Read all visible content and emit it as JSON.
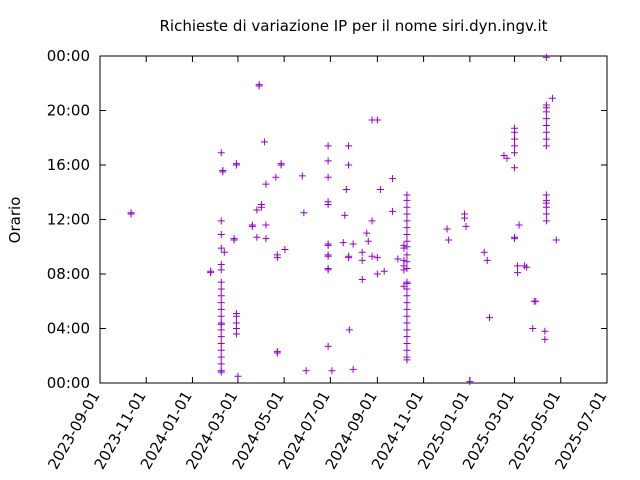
{
  "chart_data": {
    "type": "scatter",
    "title": "Richieste di variazione IP per il nome siri.dyn.ingv.it",
    "xlabel": "",
    "ylabel": "Orario",
    "x_ticks": [
      "2023-09-01",
      "2023-11-01",
      "2024-01-01",
      "2024-03-01",
      "2024-05-01",
      "2024-07-01",
      "2024-09-01",
      "2024-11-01",
      "2025-01-01",
      "2025-03-01",
      "2025-05-01",
      "2025-07-01"
    ],
    "y_ticks": [
      "00:00",
      "04:00",
      "08:00",
      "12:00",
      "16:00",
      "20:00",
      "00:00"
    ],
    "xlim": [
      "2023-09-01",
      "2025-07-01"
    ],
    "ylim": [
      0,
      24
    ],
    "grid": false,
    "marker": "+",
    "color": "#9400D3",
    "series": [
      {
        "points": [
          [
            "2023-10-12",
            12.4
          ],
          [
            "2023-10-12",
            12.5
          ],
          [
            "2024-01-25",
            8.1
          ],
          [
            "2024-01-25",
            8.2
          ],
          [
            "2024-02-08",
            16.9
          ],
          [
            "2024-02-08",
            11.9
          ],
          [
            "2024-02-08",
            10.9
          ],
          [
            "2024-02-08",
            9.9
          ],
          [
            "2024-02-08",
            8.7
          ],
          [
            "2024-02-08",
            8.3
          ],
          [
            "2024-02-08",
            7.4
          ],
          [
            "2024-02-08",
            6.9
          ],
          [
            "2024-02-08",
            6.4
          ],
          [
            "2024-02-08",
            5.9
          ],
          [
            "2024-02-08",
            5.4
          ],
          [
            "2024-02-08",
            4.9
          ],
          [
            "2024-02-08",
            4.4
          ],
          [
            "2024-02-08",
            4.3
          ],
          [
            "2024-02-08",
            3.9
          ],
          [
            "2024-02-08",
            3.4
          ],
          [
            "2024-02-08",
            2.9
          ],
          [
            "2024-02-08",
            2.4
          ],
          [
            "2024-02-08",
            1.9
          ],
          [
            "2024-02-08",
            1.4
          ],
          [
            "2024-02-08",
            0.9
          ],
          [
            "2024-02-08",
            0.8
          ],
          [
            "2024-02-10",
            15.6
          ],
          [
            "2024-02-10",
            15.5
          ],
          [
            "2024-02-12",
            9.6
          ],
          [
            "2024-02-25",
            10.5
          ],
          [
            "2024-02-25",
            10.6
          ],
          [
            "2024-02-28",
            16.1
          ],
          [
            "2024-02-28",
            16.0
          ],
          [
            "2024-02-28",
            5.1
          ],
          [
            "2024-02-28",
            4.9
          ],
          [
            "2024-02-28",
            4.4
          ],
          [
            "2024-02-28",
            4.0
          ],
          [
            "2024-02-28",
            3.6
          ],
          [
            "2024-03-01",
            0.5
          ],
          [
            "2024-03-20",
            11.6
          ],
          [
            "2024-03-20",
            11.5
          ],
          [
            "2024-03-26",
            12.7
          ],
          [
            "2024-03-26",
            10.7
          ],
          [
            "2024-03-29",
            21.9
          ],
          [
            "2024-03-29",
            21.8
          ],
          [
            "2024-04-01",
            13.1
          ],
          [
            "2024-04-01",
            12.9
          ],
          [
            "2024-04-05",
            17.7
          ],
          [
            "2024-04-07",
            14.6
          ],
          [
            "2024-04-07",
            10.6
          ],
          [
            "2024-04-07",
            11.6
          ],
          [
            "2024-04-20",
            15.1
          ],
          [
            "2024-04-22",
            9.4
          ],
          [
            "2024-04-22",
            9.2
          ],
          [
            "2024-04-22",
            2.3
          ],
          [
            "2024-04-22",
            2.2
          ],
          [
            "2024-04-27",
            16.1
          ],
          [
            "2024-04-27",
            16.0
          ],
          [
            "2024-05-02",
            9.8
          ],
          [
            "2024-05-25",
            15.2
          ],
          [
            "2024-05-27",
            12.5
          ],
          [
            "2024-05-30",
            0.9
          ],
          [
            "2024-06-28",
            17.4
          ],
          [
            "2024-06-28",
            16.3
          ],
          [
            "2024-06-28",
            15.1
          ],
          [
            "2024-06-28",
            13.1
          ],
          [
            "2024-06-28",
            13.3
          ],
          [
            "2024-06-28",
            10.1
          ],
          [
            "2024-06-28",
            10.2
          ],
          [
            "2024-06-28",
            9.4
          ],
          [
            "2024-06-28",
            9.3
          ],
          [
            "2024-06-28",
            8.4
          ],
          [
            "2024-06-28",
            8.3
          ],
          [
            "2024-06-28",
            2.7
          ],
          [
            "2024-07-03",
            0.9
          ],
          [
            "2024-07-18",
            10.3
          ],
          [
            "2024-07-20",
            12.3
          ],
          [
            "2024-07-22",
            14.2
          ],
          [
            "2024-07-25",
            17.4
          ],
          [
            "2024-07-25",
            16.0
          ],
          [
            "2024-07-25",
            9.3
          ],
          [
            "2024-07-25",
            9.2
          ],
          [
            "2024-07-26",
            3.9
          ],
          [
            "2024-07-31",
            10.2
          ],
          [
            "2024-07-31",
            1.0
          ],
          [
            "2024-08-12",
            9.6
          ],
          [
            "2024-08-12",
            9.0
          ],
          [
            "2024-08-12",
            7.6
          ],
          [
            "2024-08-18",
            11.0
          ],
          [
            "2024-08-20",
            10.4
          ],
          [
            "2024-08-25",
            19.3
          ],
          [
            "2024-08-25",
            11.9
          ],
          [
            "2024-08-25",
            9.3
          ],
          [
            "2024-09-01",
            19.3
          ],
          [
            "2024-09-01",
            9.2
          ],
          [
            "2024-09-01",
            8.0
          ],
          [
            "2024-09-05",
            14.2
          ],
          [
            "2024-09-10",
            8.2
          ],
          [
            "2024-09-21",
            15.0
          ],
          [
            "2024-09-21",
            12.6
          ],
          [
            "2024-09-28",
            9.1
          ],
          [
            "2024-10-06",
            10.1
          ],
          [
            "2024-10-06",
            9.9
          ],
          [
            "2024-10-06",
            9.0
          ],
          [
            "2024-10-06",
            8.6
          ],
          [
            "2024-10-06",
            8.3
          ],
          [
            "2024-10-06",
            7.1
          ],
          [
            "2024-10-10",
            13.8
          ],
          [
            "2024-10-10",
            13.4
          ],
          [
            "2024-10-10",
            12.9
          ],
          [
            "2024-10-10",
            12.4
          ],
          [
            "2024-10-10",
            11.9
          ],
          [
            "2024-10-10",
            11.4
          ],
          [
            "2024-10-10",
            10.9
          ],
          [
            "2024-10-10",
            10.4
          ],
          [
            "2024-10-10",
            10.0
          ],
          [
            "2024-10-10",
            9.4
          ],
          [
            "2024-10-10",
            8.9
          ],
          [
            "2024-10-10",
            8.4
          ],
          [
            "2024-10-10",
            7.4
          ],
          [
            "2024-10-10",
            7.3
          ],
          [
            "2024-10-10",
            6.9
          ],
          [
            "2024-10-10",
            6.4
          ],
          [
            "2024-10-10",
            5.9
          ],
          [
            "2024-10-10",
            5.4
          ],
          [
            "2024-10-10",
            4.9
          ],
          [
            "2024-10-10",
            4.4
          ],
          [
            "2024-10-10",
            3.9
          ],
          [
            "2024-10-10",
            3.4
          ],
          [
            "2024-10-10",
            2.9
          ],
          [
            "2024-10-10",
            2.4
          ],
          [
            "2024-10-10",
            1.9
          ],
          [
            "2024-10-10",
            1.7
          ],
          [
            "2024-12-02",
            11.3
          ],
          [
            "2024-12-04",
            10.5
          ],
          [
            "2024-12-25",
            12.4
          ],
          [
            "2024-12-25",
            12.1
          ],
          [
            "2024-12-27",
            11.5
          ],
          [
            "2025-01-01",
            0.1
          ],
          [
            "2025-01-20",
            9.6
          ],
          [
            "2025-01-24",
            9.0
          ],
          [
            "2025-01-27",
            4.8
          ],
          [
            "2025-02-15",
            16.7
          ],
          [
            "2025-02-19",
            16.5
          ],
          [
            "2025-03-01",
            18.7
          ],
          [
            "2025-03-01",
            18.4
          ],
          [
            "2025-03-01",
            17.9
          ],
          [
            "2025-03-01",
            17.4
          ],
          [
            "2025-03-01",
            16.9
          ],
          [
            "2025-03-01",
            15.8
          ],
          [
            "2025-03-01",
            10.7
          ],
          [
            "2025-03-01",
            10.6
          ],
          [
            "2025-03-05",
            8.6
          ],
          [
            "2025-03-05",
            8.1
          ],
          [
            "2025-03-07",
            11.6
          ],
          [
            "2025-03-14",
            8.6
          ],
          [
            "2025-03-17",
            8.5
          ],
          [
            "2025-03-27",
            6.0
          ],
          [
            "2025-03-29",
            6.0
          ],
          [
            "2025-03-25",
            4.0
          ],
          [
            "2025-04-12",
            23.9
          ],
          [
            "2025-04-12",
            20.4
          ],
          [
            "2025-04-12",
            20.2
          ],
          [
            "2025-04-12",
            19.9
          ],
          [
            "2025-04-12",
            19.4
          ],
          [
            "2025-04-12",
            18.9
          ],
          [
            "2025-04-12",
            18.4
          ],
          [
            "2025-04-12",
            17.9
          ],
          [
            "2025-04-12",
            17.4
          ],
          [
            "2025-04-12",
            13.8
          ],
          [
            "2025-04-12",
            13.4
          ],
          [
            "2025-04-12",
            13.2
          ],
          [
            "2025-04-12",
            12.9
          ],
          [
            "2025-04-12",
            12.4
          ],
          [
            "2025-04-12",
            11.9
          ],
          [
            "2025-04-10",
            3.8
          ],
          [
            "2025-04-10",
            3.2
          ],
          [
            "2025-04-20",
            20.9
          ],
          [
            "2025-04-25",
            10.5
          ]
        ]
      }
    ]
  }
}
